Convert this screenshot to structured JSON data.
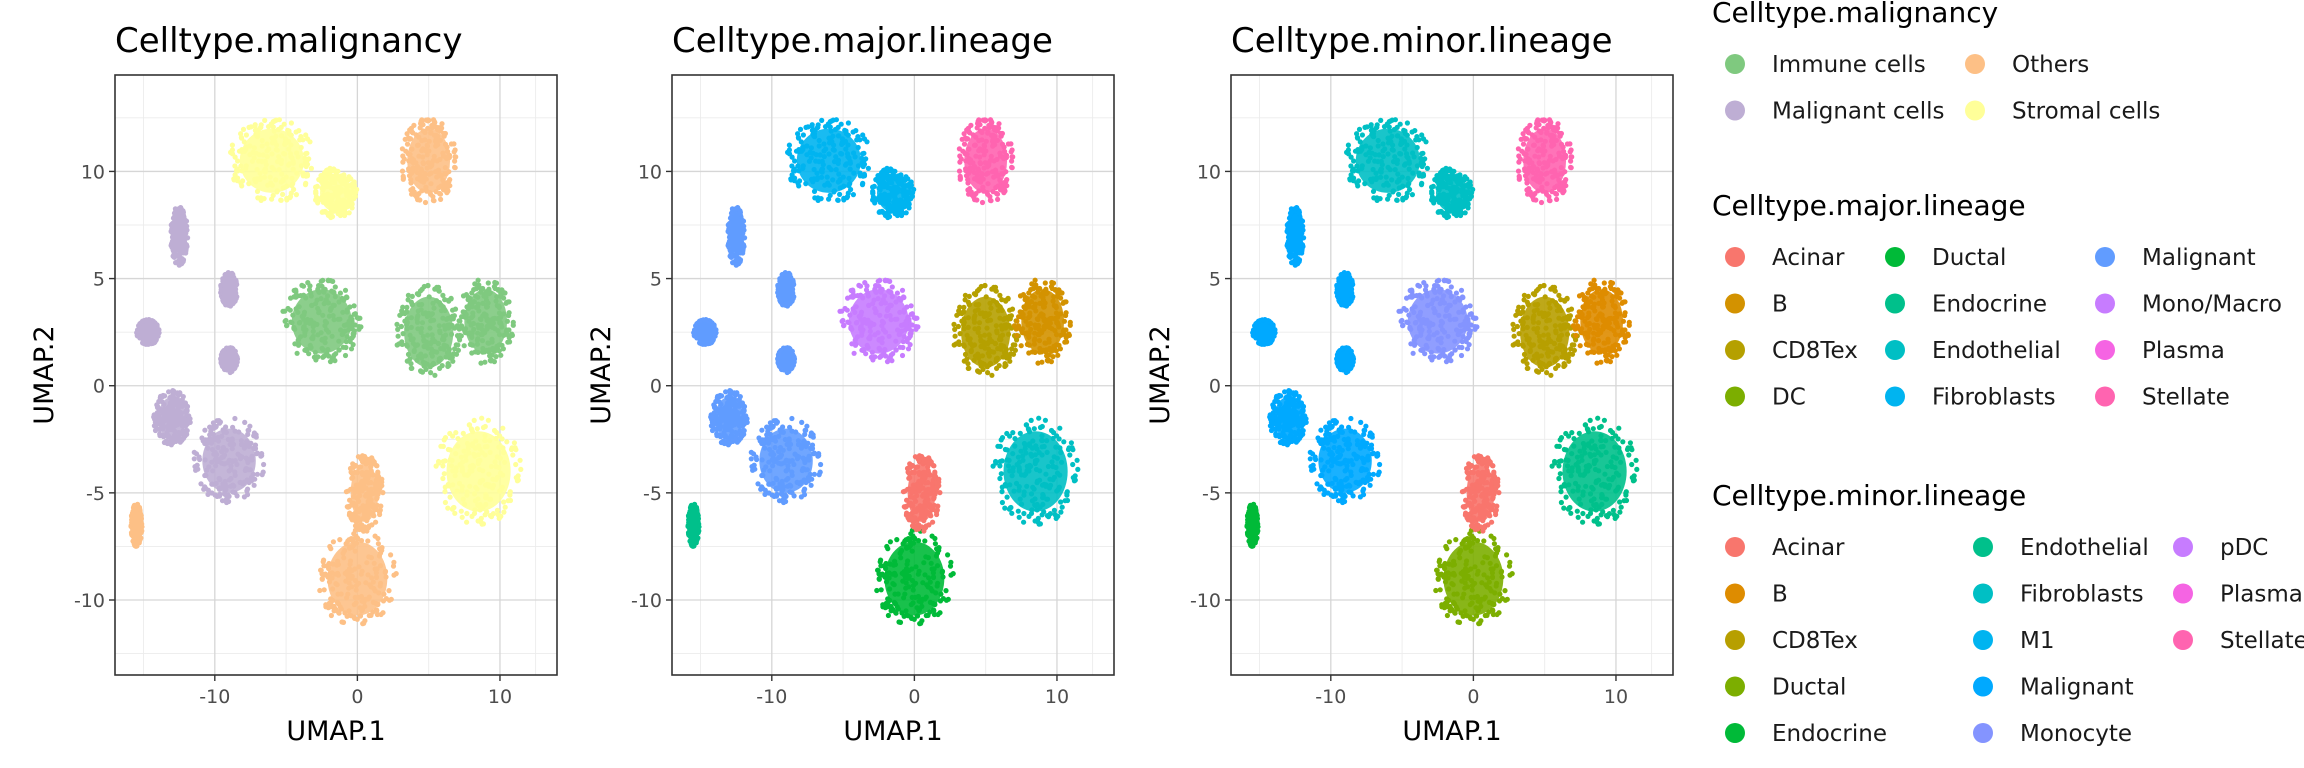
{
  "chart_data": [
    {
      "type": "scatter",
      "title": "Celltype.malignancy",
      "xlabel": "UMAP.1",
      "ylabel": "UMAP.2",
      "xlim": [
        -17,
        14
      ],
      "ylim": [
        -13.5,
        14.5
      ],
      "xticks": [
        -10,
        0,
        10
      ],
      "yticks": [
        -10,
        -5,
        0,
        5,
        10
      ],
      "xtick_labels": [
        "-10",
        "0",
        "10"
      ],
      "ytick_labels": [
        "-10",
        "-5",
        "0",
        "5",
        "10"
      ],
      "grid": true,
      "clusters": [
        {
          "x": -6.0,
          "y": 10.5,
          "rx": 3.0,
          "ry": 2.0,
          "category": "Stromal cells"
        },
        {
          "x": -1.5,
          "y": 9.0,
          "rx": 1.5,
          "ry": 1.2,
          "category": "Stromal cells"
        },
        {
          "x": 5.0,
          "y": 10.5,
          "rx": 2.0,
          "ry": 2.0,
          "category": "Others"
        },
        {
          "x": -12.5,
          "y": 7.0,
          "rx": 0.6,
          "ry": 1.4,
          "category": "Malignant cells"
        },
        {
          "x": -9.0,
          "y": 4.5,
          "rx": 0.6,
          "ry": 0.8,
          "category": "Malignant cells"
        },
        {
          "x": -14.7,
          "y": 2.5,
          "rx": 0.8,
          "ry": 0.6,
          "category": "Malignant cells"
        },
        {
          "x": -9.0,
          "y": 1.2,
          "rx": 0.6,
          "ry": 0.6,
          "category": "Malignant cells"
        },
        {
          "x": -2.5,
          "y": 3.0,
          "rx": 2.8,
          "ry": 2.0,
          "category": "Immune cells"
        },
        {
          "x": 5.0,
          "y": 2.5,
          "rx": 2.3,
          "ry": 2.2,
          "category": "Immune cells"
        },
        {
          "x": 9.0,
          "y": 3.0,
          "rx": 2.0,
          "ry": 2.0,
          "category": "Immune cells"
        },
        {
          "x": -13.0,
          "y": -1.5,
          "rx": 1.3,
          "ry": 1.3,
          "category": "Malignant cells"
        },
        {
          "x": -9.0,
          "y": -3.5,
          "rx": 2.5,
          "ry": 2.0,
          "category": "Malignant cells"
        },
        {
          "x": -15.5,
          "y": -6.5,
          "rx": 0.4,
          "ry": 1.0,
          "category": "Others"
        },
        {
          "x": 0.0,
          "y": -9.0,
          "rx": 2.8,
          "ry": 2.3,
          "category": "Others"
        },
        {
          "x": 0.5,
          "y": -5.0,
          "rx": 1.3,
          "ry": 1.8,
          "category": "Others"
        },
        {
          "x": 8.5,
          "y": -4.0,
          "rx": 3.0,
          "ry": 2.5,
          "category": "Stromal cells"
        }
      ],
      "legend": {
        "title": "Celltype.malignancy",
        "columns": [
          [
            "Immune cells",
            "Malignant cells"
          ],
          [
            "Others",
            "Stromal cells"
          ]
        ],
        "colors": {
          "Immune cells": "#7FC97F",
          "Malignant cells": "#BEAED4",
          "Others": "#FDC086",
          "Stromal cells": "#FFFF99"
        }
      }
    },
    {
      "type": "scatter",
      "title": "Celltype.major.lineage",
      "xlabel": "UMAP.1",
      "ylabel": "UMAP.2",
      "xlim": [
        -17,
        14
      ],
      "ylim": [
        -13.5,
        14.5
      ],
      "xticks": [
        -10,
        0,
        10
      ],
      "yticks": [
        -10,
        -5,
        0,
        5,
        10
      ],
      "xtick_labels": [
        "-10",
        "0",
        "10"
      ],
      "ytick_labels": [
        "-10",
        "-5",
        "0",
        "5",
        "10"
      ],
      "grid": true,
      "clusters": [
        {
          "x": -6.0,
          "y": 10.5,
          "rx": 3.0,
          "ry": 2.0,
          "category": "Fibroblasts"
        },
        {
          "x": -1.5,
          "y": 9.0,
          "rx": 1.5,
          "ry": 1.2,
          "category": "Fibroblasts"
        },
        {
          "x": 5.0,
          "y": 10.5,
          "rx": 2.0,
          "ry": 2.0,
          "category": "Stellate"
        },
        {
          "x": -12.5,
          "y": 7.0,
          "rx": 0.6,
          "ry": 1.4,
          "category": "Malignant"
        },
        {
          "x": -9.0,
          "y": 4.5,
          "rx": 0.6,
          "ry": 0.8,
          "category": "Malignant"
        },
        {
          "x": -14.7,
          "y": 2.5,
          "rx": 0.8,
          "ry": 0.6,
          "category": "Malignant"
        },
        {
          "x": -9.0,
          "y": 1.2,
          "rx": 0.6,
          "ry": 0.6,
          "category": "Malignant"
        },
        {
          "x": -2.5,
          "y": 3.0,
          "rx": 2.8,
          "ry": 2.0,
          "category": "Mono/Macro"
        },
        {
          "x": 5.0,
          "y": 2.5,
          "rx": 2.3,
          "ry": 2.2,
          "category": "CD8Tex"
        },
        {
          "x": 9.0,
          "y": 3.0,
          "rx": 2.0,
          "ry": 2.0,
          "category": "B"
        },
        {
          "x": -13.0,
          "y": -1.5,
          "rx": 1.3,
          "ry": 1.3,
          "category": "Malignant"
        },
        {
          "x": -9.0,
          "y": -3.5,
          "rx": 2.5,
          "ry": 2.0,
          "category": "Malignant"
        },
        {
          "x": -15.5,
          "y": -6.5,
          "rx": 0.4,
          "ry": 1.0,
          "category": "Endocrine"
        },
        {
          "x": 0.0,
          "y": -9.0,
          "rx": 2.8,
          "ry": 2.3,
          "category": "Ductal"
        },
        {
          "x": 0.5,
          "y": -5.0,
          "rx": 1.3,
          "ry": 1.8,
          "category": "Acinar"
        },
        {
          "x": 8.5,
          "y": -4.0,
          "rx": 3.0,
          "ry": 2.5,
          "category": "Endothelial"
        }
      ],
      "legend": {
        "title": "Celltype.major.lineage",
        "columns": [
          [
            "Acinar",
            "B",
            "CD8Tex",
            "DC"
          ],
          [
            "Ductal",
            "Endocrine",
            "Endothelial",
            "Fibroblasts"
          ],
          [
            "Malignant",
            "Mono/Macro",
            "Plasma",
            "Stellate"
          ]
        ],
        "colors": {
          "Acinar": "#F8766D",
          "B": "#D39200",
          "CD8Tex": "#B5A000",
          "DC": "#7CAE00",
          "Ductal": "#00BA38",
          "Endocrine": "#00C08B",
          "Endothelial": "#00BFC4",
          "Fibroblasts": "#00B4F0",
          "Malignant": "#619CFF",
          "Mono/Macro": "#C77CFF",
          "Plasma": "#F564E3",
          "Stellate": "#FF64B0"
        }
      }
    },
    {
      "type": "scatter",
      "title": "Celltype.minor.lineage",
      "xlabel": "UMAP.1",
      "ylabel": "UMAP.2",
      "xlim": [
        -17,
        14
      ],
      "ylim": [
        -13.5,
        14.5
      ],
      "xticks": [
        -10,
        0,
        10
      ],
      "yticks": [
        -10,
        -5,
        0,
        5,
        10
      ],
      "xtick_labels": [
        "-10",
        "0",
        "10"
      ],
      "ytick_labels": [
        "-10",
        "-5",
        "0",
        "5",
        "10"
      ],
      "grid": true,
      "clusters": [
        {
          "x": -6.0,
          "y": 10.5,
          "rx": 3.0,
          "ry": 2.0,
          "category": "Fibroblasts"
        },
        {
          "x": -1.5,
          "y": 9.0,
          "rx": 1.5,
          "ry": 1.2,
          "category": "Fibroblasts"
        },
        {
          "x": 5.0,
          "y": 10.5,
          "rx": 2.0,
          "ry": 2.0,
          "category": "Stellate"
        },
        {
          "x": -12.5,
          "y": 7.0,
          "rx": 0.6,
          "ry": 1.4,
          "category": "Malignant"
        },
        {
          "x": -9.0,
          "y": 4.5,
          "rx": 0.6,
          "ry": 0.8,
          "category": "Malignant"
        },
        {
          "x": -14.7,
          "y": 2.5,
          "rx": 0.8,
          "ry": 0.6,
          "category": "Malignant"
        },
        {
          "x": -9.0,
          "y": 1.2,
          "rx": 0.6,
          "ry": 0.6,
          "category": "Malignant"
        },
        {
          "x": -2.5,
          "y": 3.0,
          "rx": 2.8,
          "ry": 2.0,
          "category": "Monocyte"
        },
        {
          "x": 5.0,
          "y": 2.5,
          "rx": 2.3,
          "ry": 2.2,
          "category": "CD8Tex"
        },
        {
          "x": 9.0,
          "y": 3.0,
          "rx": 2.0,
          "ry": 2.0,
          "category": "B"
        },
        {
          "x": -13.0,
          "y": -1.5,
          "rx": 1.3,
          "ry": 1.3,
          "category": "Malignant"
        },
        {
          "x": -9.0,
          "y": -3.5,
          "rx": 2.5,
          "ry": 2.0,
          "category": "Malignant"
        },
        {
          "x": -15.5,
          "y": -6.5,
          "rx": 0.4,
          "ry": 1.0,
          "category": "Endocrine"
        },
        {
          "x": 0.0,
          "y": -9.0,
          "rx": 2.8,
          "ry": 2.3,
          "category": "Ductal"
        },
        {
          "x": 0.5,
          "y": -5.0,
          "rx": 1.3,
          "ry": 1.8,
          "category": "Acinar"
        },
        {
          "x": 8.5,
          "y": -4.0,
          "rx": 3.0,
          "ry": 2.5,
          "category": "Endothelial"
        }
      ],
      "legend": {
        "title": "Celltype.minor.lineage",
        "columns": [
          [
            "Acinar",
            "B",
            "CD8Tex",
            "Ductal",
            "Endocrine"
          ],
          [
            "Endothelial",
            "Fibroblasts",
            "M1",
            "Malignant",
            "Monocyte"
          ],
          [
            "pDC",
            "Plasma",
            "Stellate"
          ]
        ],
        "colors": {
          "Acinar": "#F8766D",
          "B": "#DE8C00",
          "CD8Tex": "#B79F00",
          "Ductal": "#7CAE00",
          "Endocrine": "#00BA38",
          "Endothelial": "#00C08B",
          "Fibroblasts": "#00BFC4",
          "M1": "#00B4F0",
          "Malignant": "#00A9FF",
          "Monocyte": "#8494FF",
          "pDC": "#C77CFF",
          "Plasma": "#F564E3",
          "Stellate": "#FF64B0"
        }
      }
    }
  ]
}
